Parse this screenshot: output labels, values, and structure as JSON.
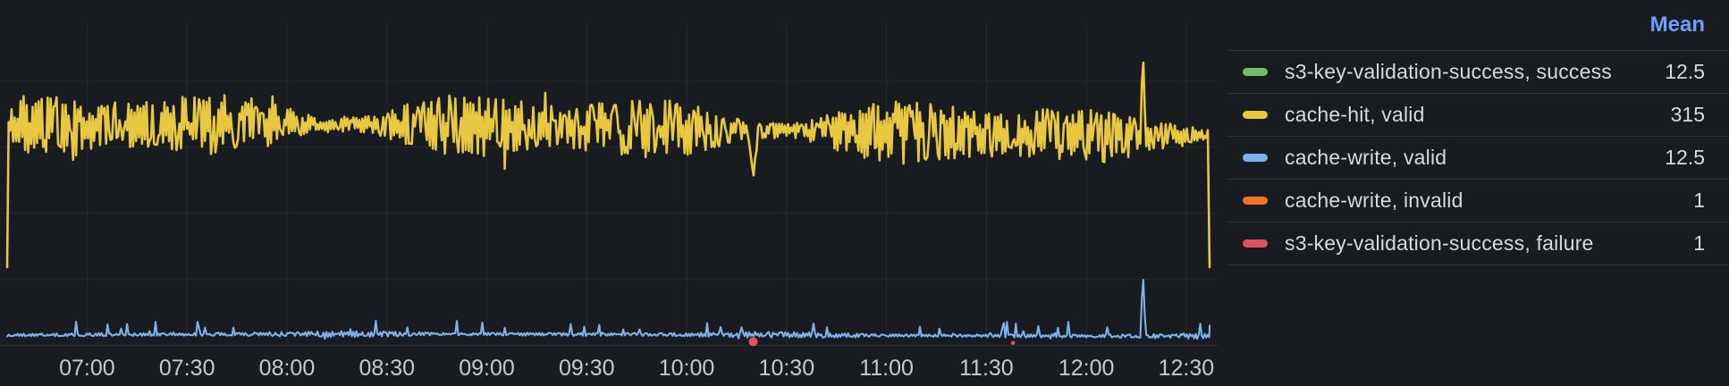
{
  "panel": {
    "background": "#181B1F",
    "grid_color": "rgba(204,204,220,0.08)",
    "axis_line_color": "rgba(204,204,220,0.12)",
    "axis_text_color": "#C7C9CE"
  },
  "legend": {
    "mean_header": "Mean",
    "mean_header_color": "#6E9FFF",
    "rows": [
      {
        "label": "s3-key-validation-success, success",
        "mean_display": "12.5",
        "color": "#73BF69"
      },
      {
        "label": "cache-hit, valid",
        "mean_display": "315",
        "color": "#E8C840"
      },
      {
        "label": "cache-write, valid",
        "mean_display": "12.5",
        "color": "#7EB0EC"
      },
      {
        "label": "cache-write, invalid",
        "mean_display": "1",
        "color": "#ED7327"
      },
      {
        "label": "s3-key-validation-success, failure",
        "mean_display": "1",
        "color": "#E0545E"
      }
    ]
  },
  "chart_data": {
    "type": "line",
    "title": "",
    "xlabel": "",
    "ylabel": "",
    "x_axis": {
      "start_time": "06:36",
      "end_time": "12:37",
      "tick_labels": [
        "07:00",
        "07:30",
        "08:00",
        "08:30",
        "09:00",
        "09:30",
        "10:00",
        "10:30",
        "11:00",
        "11:30",
        "12:00",
        "12:30"
      ],
      "tick_interval_minutes": 30
    },
    "y_axis": {
      "min": 0,
      "max": 490,
      "gridline_values": [
        100,
        200,
        300,
        400
      ],
      "labels_visible": false
    },
    "grid": true,
    "legend_position": "right-table",
    "render_seed": 11,
    "series": [
      {
        "name": "s3-key-validation-success, success",
        "color": "#73BF69",
        "mean": 12.5,
        "plot_visible": false,
        "note": "line hidden behind cache-write, valid"
      },
      {
        "name": "cache-hit, valid",
        "color": "#E8C840",
        "mean": 315,
        "plot_visible": true,
        "line_width": 2.6,
        "baseline": 324,
        "noise_amplitude": 40,
        "events": [
          {
            "time": "06:36",
            "value": 118,
            "width_min": 0.5
          },
          {
            "time": "10:20",
            "value": 253,
            "width_min": 1.5
          },
          {
            "time": "12:17",
            "value": 447,
            "width_min": 0.7
          },
          {
            "time": "12:37",
            "value": 118,
            "width_min": 0.5
          }
        ]
      },
      {
        "name": "cache-write, valid",
        "color": "#7EB0EC",
        "mean": 12.5,
        "plot_visible": true,
        "line_width": 2.1,
        "baseline": 15,
        "noise_amplitude": 3.5,
        "up_spike_chance": 0.05,
        "up_spike_size": 22,
        "events": [
          {
            "time": "12:17",
            "value": 111,
            "width_min": 0.8
          }
        ]
      },
      {
        "name": "cache-write, invalid",
        "color": "#ED7327",
        "mean": 1,
        "plot_visible": false,
        "note": "line hidden behind cache-write, valid"
      },
      {
        "name": "s3-key-validation-success, failure",
        "color": "#E0545E",
        "mean": 1,
        "plot_visible": true,
        "points": [
          {
            "time": "10:20",
            "value": 5,
            "radius": 5
          },
          {
            "time": "11:38",
            "value": 3,
            "radius": 2.2
          }
        ]
      }
    ]
  }
}
